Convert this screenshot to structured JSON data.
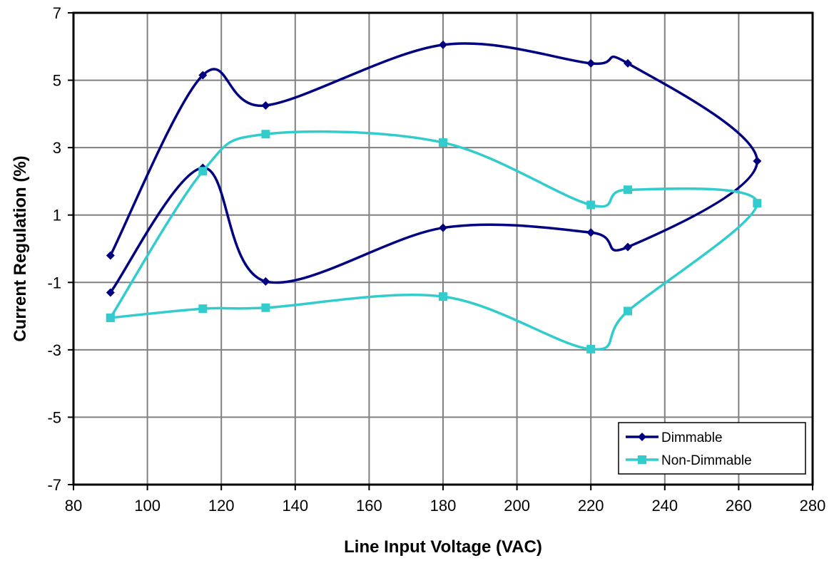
{
  "chart_data": {
    "type": "scatter",
    "xlabel": "Line Input Voltage (VAC)",
    "ylabel": "Current Regulation (%)",
    "xlim": [
      80,
      280
    ],
    "ylim": [
      -7,
      7
    ],
    "x_ticks": [
      "80",
      "100",
      "120",
      "140",
      "160",
      "180",
      "200",
      "220",
      "240",
      "260",
      "280"
    ],
    "y_ticks": [
      "7",
      "5",
      "3",
      "1",
      "-1",
      "-3",
      "-5",
      "-7"
    ],
    "x_tick_values": [
      80,
      100,
      120,
      140,
      160,
      180,
      200,
      220,
      240,
      260,
      280
    ],
    "y_tick_values": [
      7,
      5,
      3,
      1,
      -1,
      -3,
      -5,
      -7
    ],
    "grid": true,
    "legend_position": "bottom-right",
    "series": [
      {
        "name": "Dimmable",
        "color": "#000080",
        "marker": "diamond",
        "points": [
          [
            90,
            -0.2
          ],
          [
            115,
            5.15
          ],
          [
            132,
            4.25
          ],
          [
            180,
            6.05
          ],
          [
            220,
            5.5
          ],
          [
            230,
            5.5
          ],
          [
            265,
            2.6
          ],
          [
            230,
            0.05
          ],
          [
            220,
            0.48
          ],
          [
            180,
            0.62
          ],
          [
            132,
            -0.97
          ],
          [
            115,
            2.4
          ],
          [
            90,
            -1.3
          ]
        ]
      },
      {
        "name": "Non-Dimmable",
        "color": "#33CCCC",
        "marker": "square",
        "points": [
          [
            90,
            -2.05
          ],
          [
            115,
            2.3
          ],
          [
            132,
            3.4
          ],
          [
            180,
            3.15
          ],
          [
            220,
            1.3
          ],
          [
            230,
            1.75
          ],
          [
            265,
            1.35
          ],
          [
            230,
            -1.85
          ],
          [
            220,
            -2.98
          ],
          [
            180,
            -1.42
          ],
          [
            132,
            -1.75
          ],
          [
            115,
            -1.78
          ],
          [
            90,
            -2.05
          ]
        ]
      }
    ]
  }
}
